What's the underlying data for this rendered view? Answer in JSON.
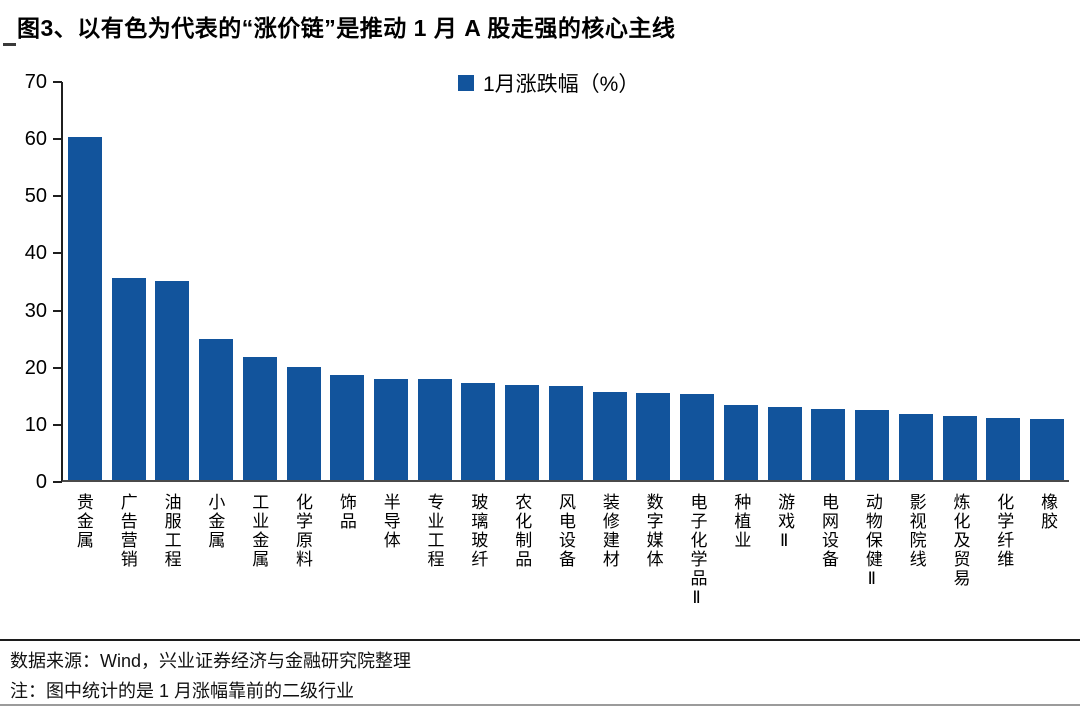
{
  "title": "图3、以有色为代表的“涨价链”是推动 1 月 A 股走强的核心主线",
  "chart_data": {
    "type": "bar",
    "title": "图3、以有色为代表的“涨价链”是推动 1 月 A 股走强的核心主线",
    "legend": "1月涨跌幅（%）",
    "legend_position": "top-center",
    "bar_color": "#12549C",
    "grid": false,
    "ylim": [
      0,
      70
    ],
    "yticks": [
      0,
      10,
      20,
      30,
      40,
      50,
      60,
      70
    ],
    "xlabel": "",
    "ylabel": "",
    "categories": [
      "贵金属",
      "广告营销",
      "油服工程",
      "小金属",
      "工业金属",
      "化学原料",
      "饰品",
      "半导体",
      "专业工程",
      "玻璃玻纤",
      "农化制品",
      "风电设备",
      "装修建材",
      "数字媒体",
      "电子化学品Ⅱ",
      "种植业",
      "游戏Ⅱ",
      "电网设备",
      "动物保健Ⅱ",
      "影视院线",
      "炼化及贸易",
      "化学纤维",
      "橡胶"
    ],
    "values": [
      60.4,
      35.5,
      35.0,
      24.8,
      21.6,
      19.8,
      18.5,
      17.8,
      17.7,
      17.1,
      16.7,
      16.6,
      15.5,
      15.3,
      15.1,
      13.2,
      12.8,
      12.5,
      12.4,
      11.6,
      11.3,
      10.9,
      10.8
    ]
  },
  "footer": {
    "source": "数据来源：Wind，兴业证券经济与金融研究院整理",
    "note": "注：图中统计的是 1 月涨幅靠前的二级行业"
  }
}
